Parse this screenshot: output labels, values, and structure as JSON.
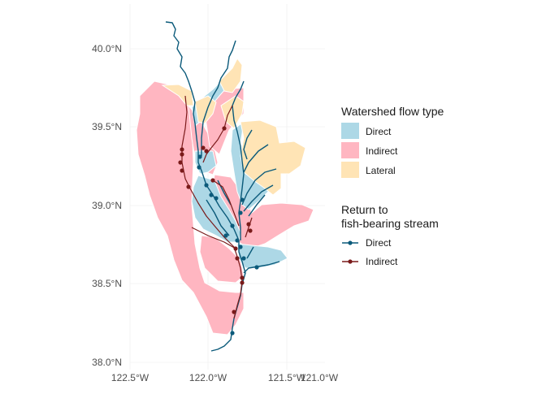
{
  "axes": {
    "x_ticks": [
      "122.5°W",
      "122.0°W",
      "121.5°W",
      "121.0°W"
    ],
    "y_ticks": [
      "40.0°N",
      "39.5°N",
      "39.0°N",
      "38.5°N",
      "38.0°N"
    ]
  },
  "legend_fill": {
    "title": "Watershed flow type",
    "items": [
      {
        "label": "Direct",
        "color": "#add8e6"
      },
      {
        "label": "Indirect",
        "color": "#ffb6c1"
      },
      {
        "label": "Lateral",
        "color": "#ffe4b5"
      }
    ]
  },
  "legend_lines": {
    "title_line1": "Return to",
    "title_line2": "fish-bearing stream",
    "items": [
      {
        "label": "Direct",
        "color": "#0b5a7a"
      },
      {
        "label": "Indirect",
        "color": "#7a1a1a"
      }
    ]
  },
  "colors": {
    "direct_fill": "#add8e6",
    "indirect_fill": "#ffb6c1",
    "lateral_fill": "#ffe4b5",
    "direct_line": "#0b5a7a",
    "indirect_line": "#7a1a1a",
    "grid": "#ebebeb"
  }
}
